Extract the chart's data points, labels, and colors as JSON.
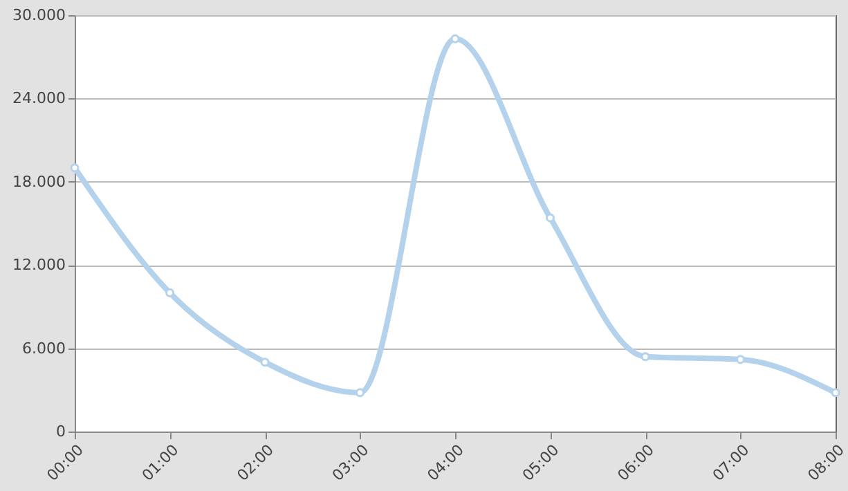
{
  "chart_data": {
    "type": "line",
    "categories": [
      "00:00",
      "01:00",
      "02:00",
      "03:00",
      "04:00",
      "05:00",
      "06:00",
      "07:00",
      "08:00"
    ],
    "series": [
      {
        "color": "#b4d2ec",
        "values": [
          19000,
          10000,
          5000,
          2800,
          28300,
          15400,
          5400,
          5200,
          2800
        ]
      }
    ],
    "ylim": [
      0,
      30000
    ],
    "yticks": [
      {
        "value": 0,
        "label": "0"
      },
      {
        "value": 6000,
        "label": "6.000"
      },
      {
        "value": 12000,
        "label": "12.000"
      },
      {
        "value": 18000,
        "label": "18.000"
      },
      {
        "value": 24000,
        "label": "24.000"
      },
      {
        "value": 30000,
        "label": "30.000"
      }
    ],
    "grid": "y",
    "marker": "circle"
  }
}
